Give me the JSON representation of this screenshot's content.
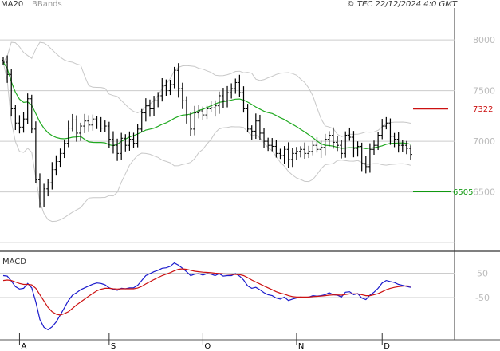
{
  "header": {
    "ma_label": "MA20",
    "bb_label": "BBands",
    "copyright": "© TEC 22/12/2024 4:0 GMT"
  },
  "macd_label": "MACD",
  "colors": {
    "candles": "#000000",
    "ma": "#22aa22",
    "bands": "#c8c8c8",
    "macd": "#1a1acc",
    "signal": "#cc1111",
    "resistance": "#cc1111",
    "support": "#119911",
    "grid": "#cccccc"
  },
  "chart_data": [
    {
      "type": "bar",
      "subtype": "ohlc",
      "indicators": [
        "MA20",
        "BBands"
      ],
      "xlabel": "",
      "ylabel": "",
      "ylim": [
        5930,
        8300
      ],
      "yticks": [
        8000,
        7500,
        7000,
        6500
      ],
      "grid": true,
      "x_tick_labels": [
        {
          "label": "A",
          "index": 4
        },
        {
          "label": "S",
          "index": 26
        },
        {
          "label": "O",
          "index": 49
        },
        {
          "label": "N",
          "index": 72
        },
        {
          "label": "D",
          "index": 93
        }
      ],
      "levels": [
        {
          "name": "resistance",
          "value": 7322,
          "label": "7322"
        },
        {
          "name": "support",
          "value": 6505,
          "label": "6505"
        }
      ],
      "close": [
        7780,
        7660,
        7320,
        7180,
        7140,
        7220,
        7420,
        7120,
        6620,
        6430,
        6530,
        6590,
        6720,
        6800,
        6880,
        6980,
        7130,
        7210,
        7080,
        7150,
        7200,
        7160,
        7220,
        7170,
        7130,
        7150,
        7020,
        6960,
        6880,
        7030,
        6960,
        7020,
        6980,
        7120,
        7280,
        7350,
        7320,
        7400,
        7450,
        7550,
        7500,
        7560,
        7700,
        7520,
        7400,
        7250,
        7120,
        7280,
        7300,
        7260,
        7320,
        7330,
        7350,
        7450,
        7400,
        7480,
        7520,
        7580,
        7480,
        7320,
        7120,
        7100,
        7200,
        7080,
        7000,
        6960,
        6950,
        6880,
        6860,
        6920,
        6820,
        6880,
        6900,
        6920,
        6880,
        6900,
        6960,
        6920,
        6940,
        7020,
        7060,
        6990,
        6960,
        6880,
        7060,
        7040,
        6930,
        6950,
        6780,
        6750,
        6920,
        6960,
        7060,
        7150,
        7180,
        7050,
        7020,
        6960,
        6960,
        6930,
        6870
      ]
    },
    {
      "type": "line",
      "name": "MACD",
      "ylim": [
        -220,
        130
      ],
      "yticks": [
        50,
        -50
      ],
      "series": [
        {
          "name": "MACD",
          "values": [
            40,
            38,
            18,
            -5,
            -15,
            -12,
            8,
            -10,
            -68,
            -140,
            -172,
            -182,
            -170,
            -150,
            -122,
            -92,
            -62,
            -40,
            -30,
            -18,
            -10,
            -2,
            5,
            10,
            8,
            2,
            -10,
            -16,
            -20,
            -12,
            -14,
            -10,
            -10,
            0,
            20,
            40,
            48,
            56,
            62,
            70,
            72,
            78,
            92,
            83,
            70,
            56,
            40,
            46,
            48,
            42,
            48,
            46,
            40,
            48,
            38,
            40,
            40,
            48,
            38,
            22,
            -2,
            -12,
            -8,
            -18,
            -30,
            -38,
            -42,
            -52,
            -56,
            -48,
            -62,
            -56,
            -52,
            -48,
            -50,
            -48,
            -42,
            -44,
            -42,
            -38,
            -30,
            -38,
            -40,
            -48,
            -28,
            -26,
            -38,
            -34,
            -52,
            -58,
            -40,
            -28,
            -12,
            10,
            20,
            16,
            12,
            4,
            0,
            -4,
            -8
          ]
        },
        {
          "name": "Signal",
          "values": [
            20,
            22,
            20,
            14,
            8,
            4,
            4,
            2,
            -12,
            -38,
            -64,
            -90,
            -108,
            -118,
            -122,
            -116,
            -108,
            -94,
            -80,
            -68,
            -56,
            -44,
            -33,
            -22,
            -16,
            -12,
            -12,
            -14,
            -15,
            -14,
            -14,
            -14,
            -14,
            -11,
            -4,
            6,
            15,
            24,
            32,
            40,
            46,
            52,
            60,
            66,
            68,
            66,
            62,
            58,
            56,
            54,
            53,
            52,
            50,
            49,
            47,
            46,
            45,
            45,
            44,
            40,
            32,
            22,
            14,
            6,
            -2,
            -10,
            -18,
            -26,
            -32,
            -36,
            -42,
            -46,
            -48,
            -48,
            -48,
            -48,
            -46,
            -45,
            -44,
            -42,
            -40,
            -39,
            -39,
            -40,
            -37,
            -35,
            -35,
            -35,
            -38,
            -42,
            -42,
            -38,
            -34,
            -26,
            -18,
            -12,
            -8,
            -5,
            -3,
            -2,
            -3
          ]
        }
      ]
    }
  ]
}
